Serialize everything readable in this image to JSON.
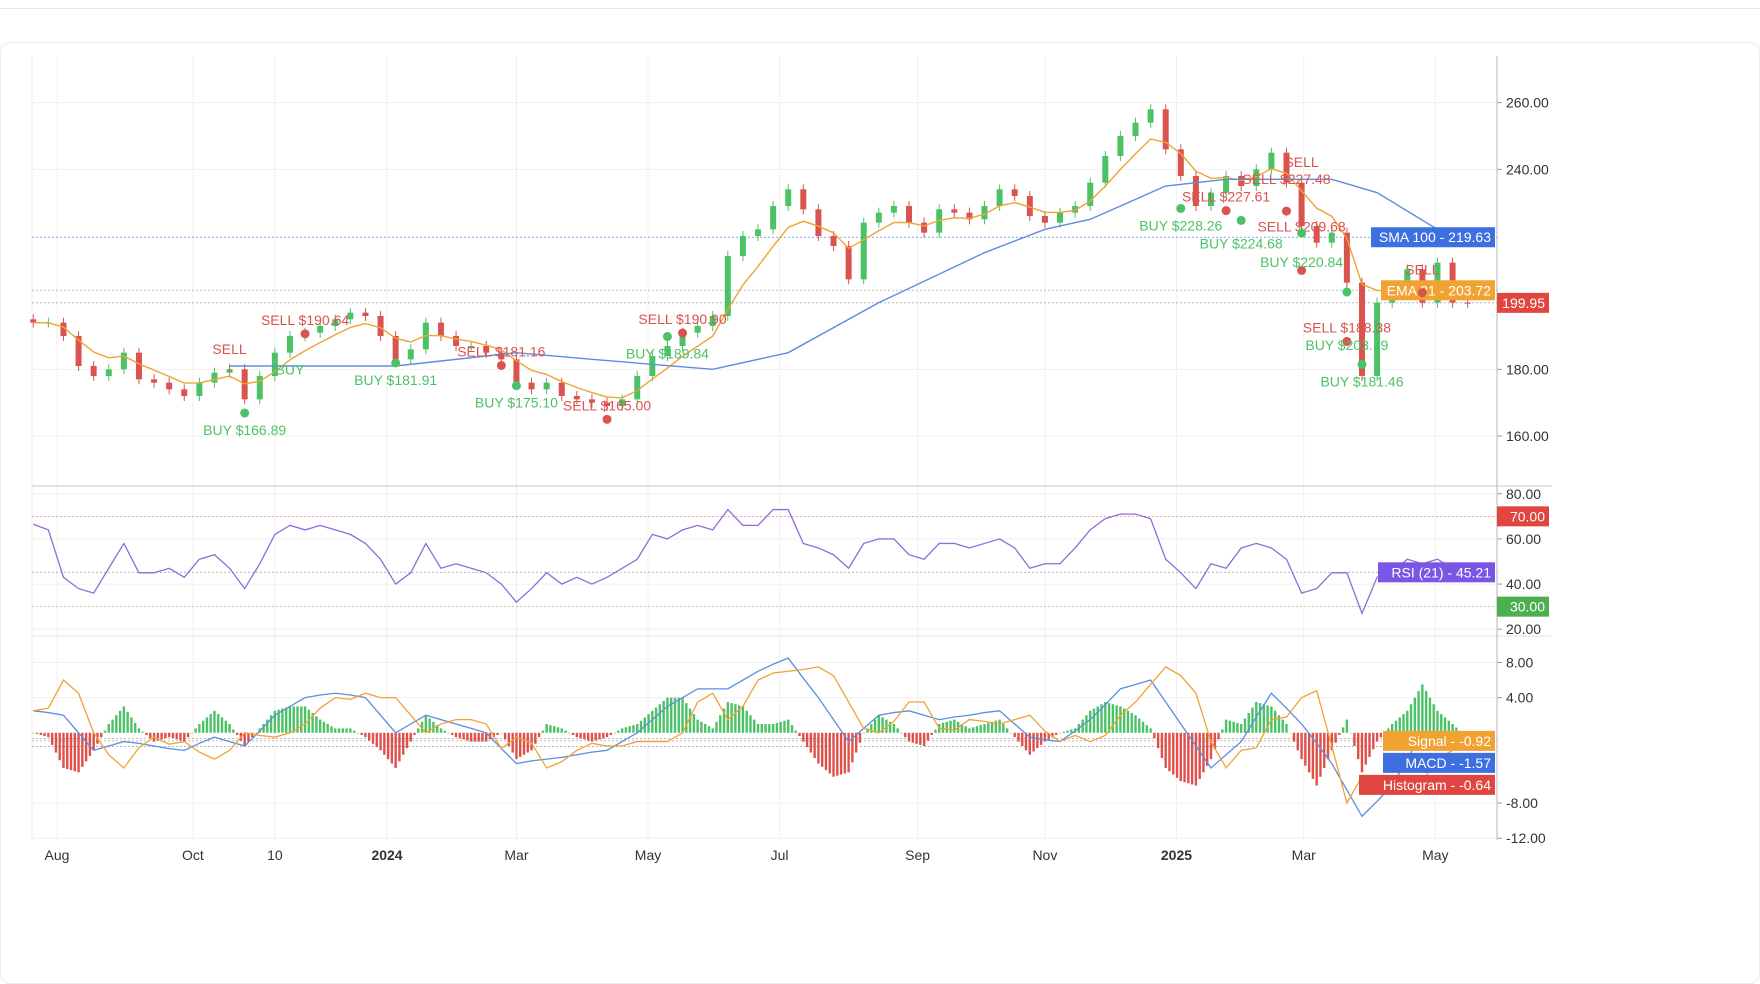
{
  "chart_data": [
    {
      "type": "candlestick",
      "pane": "price",
      "dates": [
        "2023-07-21",
        "2023-07-28",
        "2023-08-04",
        "2023-08-11",
        "2023-08-18",
        "2023-08-25",
        "2023-09-01",
        "2023-09-08",
        "2023-09-15",
        "2023-09-22",
        "2023-09-29",
        "2023-10-06",
        "2023-10-13",
        "2023-10-20",
        "2023-10-27",
        "2023-11-03",
        "2023-11-10",
        "2023-11-17",
        "2023-11-24",
        "2023-12-01",
        "2023-12-08",
        "2023-12-15",
        "2023-12-22",
        "2023-12-29",
        "2024-01-05",
        "2024-01-12",
        "2024-01-19",
        "2024-01-26",
        "2024-02-02",
        "2024-02-09",
        "2024-02-16",
        "2024-02-23",
        "2024-03-01",
        "2024-03-08",
        "2024-03-15",
        "2024-03-22",
        "2024-03-29",
        "2024-04-05",
        "2024-04-12",
        "2024-04-19",
        "2024-04-26",
        "2024-05-03",
        "2024-05-10",
        "2024-05-17",
        "2024-05-24",
        "2024-05-31",
        "2024-06-07",
        "2024-06-14",
        "2024-06-21",
        "2024-06-28",
        "2024-07-05",
        "2024-07-12",
        "2024-07-19",
        "2024-07-26",
        "2024-08-02",
        "2024-08-09",
        "2024-08-16",
        "2024-08-23",
        "2024-08-30",
        "2024-09-06",
        "2024-09-13",
        "2024-09-20",
        "2024-09-27",
        "2024-10-04",
        "2024-10-11",
        "2024-10-18",
        "2024-10-25",
        "2024-11-01",
        "2024-11-08",
        "2024-11-15",
        "2024-11-22",
        "2024-11-29",
        "2024-12-06",
        "2024-12-13",
        "2024-12-20",
        "2024-12-27",
        "2025-01-03",
        "2025-01-10",
        "2025-01-17",
        "2025-01-24",
        "2025-01-31",
        "2025-02-07",
        "2025-02-14",
        "2025-02-21",
        "2025-02-28",
        "2025-03-07",
        "2025-03-14",
        "2025-03-21",
        "2025-03-28",
        "2025-04-04",
        "2025-04-11",
        "2025-04-18",
        "2025-04-25",
        "2025-05-02",
        "2025-05-09",
        "2025-05-16"
      ],
      "close": [
        194,
        194,
        190,
        181,
        178,
        180,
        185,
        177,
        176,
        174,
        172,
        176,
        179,
        180,
        171,
        178,
        185,
        190,
        191,
        193,
        195,
        197,
        196,
        190,
        183,
        186,
        194,
        190,
        187,
        187,
        185,
        183,
        176,
        174,
        176,
        172,
        171,
        170,
        169,
        171,
        178,
        184,
        187,
        191,
        193,
        196,
        214,
        220,
        222,
        229,
        234,
        228,
        220,
        217,
        207,
        224,
        227,
        229,
        224,
        221,
        228,
        227,
        225,
        229,
        234,
        232,
        226,
        224,
        227,
        229,
        236,
        244,
        250,
        254,
        258,
        246,
        238,
        229,
        233,
        238,
        235,
        240,
        245,
        236,
        223,
        218,
        221,
        206,
        178,
        200,
        203,
        210,
        200,
        212,
        200,
        199.95
      ],
      "sma_100": [
        [
          "2023-10-20",
          181
        ],
        [
          "2024-01-05",
          181
        ],
        [
          "2024-03-01",
          185
        ],
        [
          "2024-04-05",
          183
        ],
        [
          "2024-05-31",
          180
        ],
        [
          "2024-07-05",
          185
        ],
        [
          "2024-08-16",
          200
        ],
        [
          "2024-10-04",
          215
        ],
        [
          "2024-11-01",
          222
        ],
        [
          "2024-11-22",
          225
        ],
        [
          "2024-12-27",
          235
        ],
        [
          "2025-01-24",
          237
        ],
        [
          "2025-02-21",
          237
        ],
        [
          "2025-03-14",
          237
        ],
        [
          "2025-04-04",
          233
        ],
        [
          "2025-05-02",
          222
        ],
        [
          "2025-05-16",
          219.63
        ]
      ],
      "y_ticks": [
        "260.00",
        "240.00",
        "180.00",
        "160.00"
      ],
      "y_tick_values": [
        260,
        240,
        180,
        160
      ],
      "ylim": [
        145,
        274
      ],
      "last_price": {
        "label": "199.95",
        "value": 199.95,
        "color": "#e0463f"
      },
      "sma_tag": {
        "label": "SMA 100 - 219.63",
        "value": 219.63,
        "color": "#3d6fe0"
      },
      "ema_tag": {
        "label": "EMA 21 - 203.72",
        "value": 203.72,
        "color": "#f0a332"
      },
      "signals": [
        {
          "type": "sell",
          "date": "2023-10-20",
          "price": 181,
          "label": "SELL",
          "marker": "arrow"
        },
        {
          "type": "buy",
          "date": "2023-10-27",
          "price": 166.89,
          "label": "BUY $166.89",
          "marker": "dot"
        },
        {
          "type": "buy",
          "date": "2023-11-17",
          "price": 185,
          "label": "BUY",
          "marker": "arrow"
        },
        {
          "type": "sell",
          "date": "2023-11-24",
          "price": 190.64,
          "label": "SELL $190.64",
          "marker": "dot"
        },
        {
          "type": "buy",
          "date": "2024-01-05",
          "price": 181.91,
          "label": "BUY $181.91",
          "marker": "dot"
        },
        {
          "type": "sell",
          "date": "2024-02-23",
          "price": 181.16,
          "label": "SELL $181.16",
          "marker": "dot"
        },
        {
          "type": "buy",
          "date": "2024-03-01",
          "price": 175.1,
          "label": "BUY $175.10",
          "marker": "dot"
        },
        {
          "type": "sell",
          "date": "2024-04-12",
          "price": 165.0,
          "label": "SELL $165.00",
          "marker": "dot"
        },
        {
          "type": "buy",
          "date": "2024-05-10",
          "price": 189.84,
          "label": "BUY $189.84",
          "marker": "dot"
        },
        {
          "type": "sell",
          "date": "2024-05-17",
          "price": 190.9,
          "label": "SELL $190.90",
          "marker": "dot"
        },
        {
          "type": "buy",
          "date": "2025-01-03",
          "price": 228.26,
          "label": "BUY $228.26",
          "marker": "dot"
        },
        {
          "type": "sell",
          "date": "2025-01-24",
          "price": 227.61,
          "label": "SELL $227.61",
          "marker": "dot"
        },
        {
          "type": "buy",
          "date": "2025-01-31",
          "price": 224.68,
          "label": "BUY $224.68",
          "marker": "dot"
        },
        {
          "type": "sell",
          "date": "2025-02-21",
          "price": 227.48,
          "label": "SELL $227.48",
          "marker": "dot"
        },
        {
          "type": "sell",
          "date": "2025-02-28",
          "price": 229,
          "label": "SELL",
          "marker": "arrow"
        },
        {
          "type": "sell",
          "date": "2025-02-28",
          "price": 209.68,
          "label": "SELL $209.68",
          "marker": "dot"
        },
        {
          "type": "buy",
          "date": "2025-02-28",
          "price": 220.84,
          "label": "BUY $220.84",
          "marker": "dot"
        },
        {
          "type": "sell",
          "date": "2025-03-21",
          "price": 188.38,
          "label": "SELL $188.38",
          "marker": "dot"
        },
        {
          "type": "buy",
          "date": "2025-03-21",
          "price": 203.19,
          "label": "BUY $203.19",
          "marker": "dot"
        },
        {
          "type": "buy",
          "date": "2025-03-28",
          "price": 181.46,
          "label": "BUY $181.46",
          "marker": "dot"
        },
        {
          "type": "sell",
          "date": "2025-04-25",
          "price": 203,
          "label": "SELL",
          "marker": "dot"
        }
      ]
    },
    {
      "type": "line",
      "pane": "rsi",
      "values": [
        66.5,
        64,
        43,
        38,
        36,
        47,
        58,
        45,
        45,
        47,
        43,
        51,
        53,
        47,
        38,
        49,
        62,
        66,
        64,
        66,
        64,
        62,
        58,
        51,
        40,
        45,
        58,
        47,
        49,
        47,
        45,
        40,
        32,
        38,
        45,
        40,
        43,
        40,
        43,
        47,
        51,
        62,
        60,
        64,
        66,
        64,
        73,
        66,
        66,
        73,
        73,
        58,
        56,
        53,
        47,
        58,
        60,
        60,
        53,
        51,
        58,
        58,
        56,
        58,
        60,
        56,
        47,
        49,
        49,
        56,
        64,
        69,
        71,
        71,
        69,
        51,
        45,
        38,
        49,
        47,
        56,
        58,
        56,
        51,
        36,
        38,
        45,
        45,
        27,
        43,
        45,
        51,
        49,
        51,
        47,
        45.21
      ],
      "y_ticks": [
        "80.00",
        "60.00",
        "40.00",
        "20.00"
      ],
      "y_tick_values": [
        80,
        60,
        40,
        20
      ],
      "ylim": [
        17,
        83
      ],
      "overbought": {
        "label": "70.00",
        "value": 70,
        "color": "#e0463f"
      },
      "oversold": {
        "label": "30.00",
        "value": 30,
        "color": "#4caf50"
      },
      "rsi_tag": {
        "label": "RSI (21) - 45.21",
        "value": 45.21,
        "color": "#7b55e6"
      }
    },
    {
      "type": "bar+line",
      "pane": "macd",
      "macd": [
        2.5,
        2.3,
        2,
        0,
        -2,
        -1.5,
        -1,
        -1.2,
        -1.5,
        -1.8,
        -2,
        -1.2,
        -0.5,
        -1,
        -1.5,
        0.2,
        2,
        3,
        4,
        4.3,
        4.5,
        4.3,
        4,
        2,
        0,
        1,
        2,
        1.5,
        1,
        0.5,
        0,
        -1.8,
        -3.5,
        -3.2,
        -3,
        -2.8,
        -2.5,
        -2.2,
        -2,
        -1,
        0,
        1.5,
        3,
        4,
        5,
        5,
        5,
        6,
        7,
        7.8,
        8.5,
        6.2,
        4,
        1.5,
        -1,
        0.5,
        2,
        2.3,
        2.5,
        2,
        1.5,
        1.8,
        2,
        2.3,
        2.5,
        1,
        -0.5,
        -0.8,
        -1,
        0.2,
        1.5,
        3.2,
        5,
        5.5,
        6,
        3.5,
        1,
        -1.5,
        -4,
        -2.5,
        -1,
        1.8,
        4.5,
        2.8,
        1,
        -1.2,
        -3.5,
        -6.5,
        -9.5,
        -7.8,
        -6,
        -3,
        0,
        -0.5,
        -1,
        -1.57
      ],
      "histogram": [
        0,
        -0.5,
        -4,
        -4.5,
        -2,
        1,
        3,
        0.5,
        -1,
        -0.5,
        -1,
        1,
        2.5,
        1,
        -1.5,
        0.5,
        2.5,
        3,
        3,
        1.5,
        0.5,
        0.5,
        -0.5,
        -2,
        -4,
        -1,
        2,
        0.5,
        -0.5,
        -1,
        -1,
        0,
        -3,
        -2,
        1,
        0.5,
        -0.5,
        -1,
        -0.5,
        0.5,
        1,
        2.5,
        4,
        4,
        1.5,
        0.5,
        3.5,
        3,
        1,
        1,
        1.5,
        -1,
        -3.5,
        -5,
        -4.5,
        0,
        2,
        1,
        -1,
        -1.5,
        1,
        1.5,
        0.5,
        1,
        1.5,
        -0.5,
        -2.5,
        -1,
        0,
        0.5,
        2.5,
        3.5,
        3,
        2,
        0.5,
        -4,
        -5.5,
        -6,
        -3,
        1.5,
        1,
        3.5,
        3,
        1,
        -3,
        -6,
        -2,
        1.5,
        -4.5,
        -1,
        1,
        2.5,
        5.5,
        2.5,
        1,
        -0.64
      ],
      "y_ticks": [
        "8.00",
        "4.00",
        "-8.00",
        "-12.00"
      ],
      "y_tick_values": [
        8,
        4,
        -8,
        -12
      ],
      "ylim": [
        -12.2,
        10.9
      ],
      "signal_tag": {
        "label": "Signal - -0.92",
        "value": -0.92,
        "color": "#f0a332"
      },
      "macd_tag": {
        "label": "MACD - -1.57",
        "value": -1.57,
        "color": "#3d6fe0"
      },
      "histogram_tag": {
        "label": "Histogram - -0.64",
        "value": -0.64,
        "color": "#e0463f"
      },
      "colors": {
        "up": "#4cc266",
        "down": "#e0504a",
        "macd": "#5b8de0",
        "signal": "#f0a332"
      }
    }
  ],
  "x_axis": [
    {
      "label": "Aug",
      "date": "2023-08-01"
    },
    {
      "label": "Oct",
      "date": "2023-10-03"
    },
    {
      "label": "10",
      "date": "2023-11-10"
    },
    {
      "label": "2024",
      "date": "2024-01-01",
      "bold": true
    },
    {
      "label": "Mar",
      "date": "2024-03-01"
    },
    {
      "label": "May",
      "date": "2024-05-01"
    },
    {
      "label": "Jul",
      "date": "2024-07-01"
    },
    {
      "label": "Sep",
      "date": "2024-09-03"
    },
    {
      "label": "Nov",
      "date": "2024-11-01"
    },
    {
      "label": "2025",
      "date": "2025-01-01",
      "bold": true
    },
    {
      "label": "Mar",
      "date": "2025-03-01"
    },
    {
      "label": "May",
      "date": "2025-05-01"
    }
  ],
  "colors": {
    "up": "#4cc266",
    "down": "#d9534f",
    "ema": "#f0a332",
    "sma": "#5b8de0",
    "rsi": "#8a6fd6",
    "buy": "#4cc266",
    "sell": "#d9534f"
  }
}
